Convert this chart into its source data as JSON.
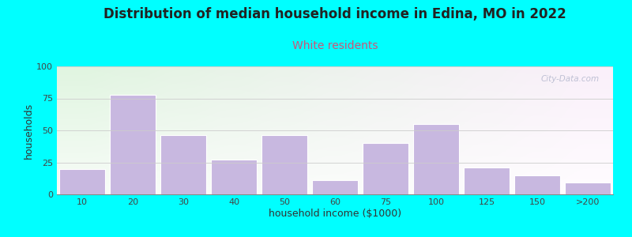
{
  "title": "Distribution of median household income in Edina, MO in 2022",
  "subtitle": "White residents",
  "subtitle_color": "#cc5577",
  "xlabel": "household income ($1000)",
  "ylabel": "households",
  "categories": [
    "10",
    "20",
    "30",
    "40",
    "50",
    "60",
    "75",
    "100",
    "125",
    "150",
    ">200"
  ],
  "values": [
    20,
    78,
    46,
    27,
    46,
    11,
    40,
    55,
    21,
    15,
    9
  ],
  "bar_color": "#c8b8e0",
  "bar_edge_color": "#ffffff",
  "ylim": [
    0,
    100
  ],
  "yticks": [
    0,
    25,
    50,
    75,
    100
  ],
  "background_color": "#00ffff",
  "plot_bg_color_topleft": "#e8f5e8",
  "plot_bg_color_right": "#f8f8f0",
  "title_fontsize": 12,
  "subtitle_fontsize": 10,
  "axis_label_fontsize": 9,
  "tick_fontsize": 8,
  "watermark_text": "City-Data.com",
  "watermark_color": "#b8bbd0"
}
